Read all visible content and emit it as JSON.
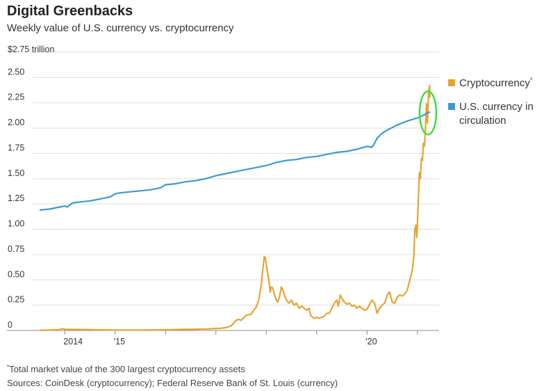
{
  "header": {
    "title": "Digital Greenbacks",
    "subtitle": "Weekly value of U.S. currency vs. cryptocurrency"
  },
  "footer": {
    "note_marker": "*",
    "note": "Total market value of the 300 largest cryptocurrency assets",
    "sources": "Sources: CoinDesk (cryptocurrency); Federal Reserve Bank of St. Louis (currency)"
  },
  "colors": {
    "crypto": "#E8A232",
    "currency": "#3A9AD1",
    "highlight": "#3CE03C",
    "grid": "#dddddd",
    "axis": "#888888"
  },
  "chart_data": {
    "type": "line",
    "title": "Digital Greenbacks",
    "subtitle": "Weekly value of U.S. currency vs. cryptocurrency",
    "ylim": [
      0,
      2.75
    ],
    "xlim": [
      2013.35,
      2021.35
    ],
    "y_unit_label": "$2.75 trillion",
    "y_ticks": [
      {
        "value": 0,
        "label": "0"
      },
      {
        "value": 0.25,
        "label": "0.25"
      },
      {
        "value": 0.5,
        "label": "0.50"
      },
      {
        "value": 0.75,
        "label": "0.75"
      },
      {
        "value": 1.0,
        "label": "1.00"
      },
      {
        "value": 1.25,
        "label": "1.25"
      },
      {
        "value": 1.5,
        "label": "1.50"
      },
      {
        "value": 1.75,
        "label": "1.75"
      },
      {
        "value": 2.0,
        "label": "2.00"
      },
      {
        "value": 2.25,
        "label": "2.25"
      },
      {
        "value": 2.5,
        "label": "2.50"
      },
      {
        "value": 2.75,
        "label": ""
      }
    ],
    "x_ticks": [
      {
        "value": 2014,
        "label": "2014"
      },
      {
        "value": 2015,
        "label": "'15"
      },
      {
        "value": 2016,
        "label": ""
      },
      {
        "value": 2017,
        "label": ""
      },
      {
        "value": 2018,
        "label": ""
      },
      {
        "value": 2019,
        "label": ""
      },
      {
        "value": 2020,
        "label": "'20"
      },
      {
        "value": 2021,
        "label": ""
      }
    ],
    "grid": true,
    "legend_position": "right",
    "series": [
      {
        "name": "Cryptocurrency",
        "name_marker": "*",
        "color": "#E8A232",
        "points": [
          [
            2013.5,
            0.002
          ],
          [
            2013.7,
            0.004
          ],
          [
            2013.9,
            0.008
          ],
          [
            2013.95,
            0.018
          ],
          [
            2014.0,
            0.012
          ],
          [
            2014.2,
            0.01
          ],
          [
            2014.5,
            0.008
          ],
          [
            2014.8,
            0.006
          ],
          [
            2015.0,
            0.004
          ],
          [
            2015.5,
            0.004
          ],
          [
            2016.0,
            0.007
          ],
          [
            2016.3,
            0.01
          ],
          [
            2016.5,
            0.012
          ],
          [
            2016.8,
            0.015
          ],
          [
            2017.0,
            0.02
          ],
          [
            2017.1,
            0.022
          ],
          [
            2017.2,
            0.028
          ],
          [
            2017.3,
            0.045
          ],
          [
            2017.4,
            0.1
          ],
          [
            2017.45,
            0.11
          ],
          [
            2017.5,
            0.1
          ],
          [
            2017.6,
            0.15
          ],
          [
            2017.7,
            0.16
          ],
          [
            2017.75,
            0.2
          ],
          [
            2017.8,
            0.23
          ],
          [
            2017.85,
            0.3
          ],
          [
            2017.9,
            0.45
          ],
          [
            2017.93,
            0.6
          ],
          [
            2017.96,
            0.73
          ],
          [
            2017.98,
            0.72
          ],
          [
            2018.0,
            0.65
          ],
          [
            2018.05,
            0.5
          ],
          [
            2018.08,
            0.38
          ],
          [
            2018.1,
            0.43
          ],
          [
            2018.13,
            0.42
          ],
          [
            2018.16,
            0.36
          ],
          [
            2018.2,
            0.3
          ],
          [
            2018.23,
            0.28
          ],
          [
            2018.27,
            0.35
          ],
          [
            2018.3,
            0.43
          ],
          [
            2018.33,
            0.4
          ],
          [
            2018.36,
            0.35
          ],
          [
            2018.4,
            0.3
          ],
          [
            2018.45,
            0.27
          ],
          [
            2018.5,
            0.3
          ],
          [
            2018.55,
            0.25
          ],
          [
            2018.6,
            0.27
          ],
          [
            2018.65,
            0.22
          ],
          [
            2018.7,
            0.24
          ],
          [
            2018.75,
            0.22
          ],
          [
            2018.8,
            0.2
          ],
          [
            2018.85,
            0.22
          ],
          [
            2018.88,
            0.15
          ],
          [
            2018.92,
            0.13
          ],
          [
            2018.96,
            0.12
          ],
          [
            2019.0,
            0.13
          ],
          [
            2019.05,
            0.12
          ],
          [
            2019.1,
            0.13
          ],
          [
            2019.15,
            0.14
          ],
          [
            2019.2,
            0.17
          ],
          [
            2019.25,
            0.17
          ],
          [
            2019.3,
            0.22
          ],
          [
            2019.35,
            0.27
          ],
          [
            2019.4,
            0.3
          ],
          [
            2019.43,
            0.24
          ],
          [
            2019.47,
            0.35
          ],
          [
            2019.5,
            0.32
          ],
          [
            2019.55,
            0.28
          ],
          [
            2019.6,
            0.26
          ],
          [
            2019.65,
            0.27
          ],
          [
            2019.7,
            0.24
          ],
          [
            2019.75,
            0.25
          ],
          [
            2019.8,
            0.22
          ],
          [
            2019.85,
            0.24
          ],
          [
            2019.9,
            0.22
          ],
          [
            2019.95,
            0.2
          ],
          [
            2020.0,
            0.21
          ],
          [
            2020.05,
            0.26
          ],
          [
            2020.1,
            0.3
          ],
          [
            2020.15,
            0.27
          ],
          [
            2020.2,
            0.17
          ],
          [
            2020.25,
            0.22
          ],
          [
            2020.3,
            0.25
          ],
          [
            2020.35,
            0.27
          ],
          [
            2020.4,
            0.35
          ],
          [
            2020.45,
            0.38
          ],
          [
            2020.5,
            0.28
          ],
          [
            2020.55,
            0.27
          ],
          [
            2020.6,
            0.33
          ],
          [
            2020.65,
            0.35
          ],
          [
            2020.7,
            0.34
          ],
          [
            2020.75,
            0.36
          ],
          [
            2020.8,
            0.4
          ],
          [
            2020.85,
            0.5
          ],
          [
            2020.9,
            0.6
          ],
          [
            2020.93,
            0.75
          ],
          [
            2020.95,
            1.0
          ],
          [
            2020.97,
            1.04
          ],
          [
            2020.99,
            0.92
          ],
          [
            2021.02,
            1.3
          ],
          [
            2021.04,
            1.56
          ],
          [
            2021.06,
            1.5
          ],
          [
            2021.08,
            1.7
          ],
          [
            2021.1,
            1.68
          ],
          [
            2021.12,
            1.85
          ],
          [
            2021.14,
            1.82
          ],
          [
            2021.16,
            2.0
          ],
          [
            2021.18,
            2.24
          ],
          [
            2021.2,
            2.05
          ],
          [
            2021.22,
            2.35
          ],
          [
            2021.24,
            2.42
          ],
          [
            2021.25,
            2.3
          ]
        ]
      },
      {
        "name": "U.S. currency in circulation",
        "color": "#3A9AD1",
        "points": [
          [
            2013.5,
            1.19
          ],
          [
            2013.7,
            1.2
          ],
          [
            2013.9,
            1.22
          ],
          [
            2014.0,
            1.23
          ],
          [
            2014.05,
            1.22
          ],
          [
            2014.15,
            1.26
          ],
          [
            2014.3,
            1.27
          ],
          [
            2014.5,
            1.28
          ],
          [
            2014.7,
            1.3
          ],
          [
            2014.9,
            1.32
          ],
          [
            2015.0,
            1.35
          ],
          [
            2015.1,
            1.36
          ],
          [
            2015.3,
            1.37
          ],
          [
            2015.5,
            1.38
          ],
          [
            2015.7,
            1.39
          ],
          [
            2015.9,
            1.41
          ],
          [
            2016.0,
            1.44
          ],
          [
            2016.2,
            1.45
          ],
          [
            2016.4,
            1.47
          ],
          [
            2016.6,
            1.48
          ],
          [
            2016.8,
            1.5
          ],
          [
            2017.0,
            1.53
          ],
          [
            2017.2,
            1.55
          ],
          [
            2017.4,
            1.57
          ],
          [
            2017.6,
            1.59
          ],
          [
            2017.8,
            1.61
          ],
          [
            2018.0,
            1.63
          ],
          [
            2018.2,
            1.66
          ],
          [
            2018.4,
            1.68
          ],
          [
            2018.6,
            1.69
          ],
          [
            2018.8,
            1.71
          ],
          [
            2019.0,
            1.72
          ],
          [
            2019.2,
            1.74
          ],
          [
            2019.4,
            1.76
          ],
          [
            2019.6,
            1.77
          ],
          [
            2019.8,
            1.79
          ],
          [
            2020.0,
            1.82
          ],
          [
            2020.1,
            1.81
          ],
          [
            2020.15,
            1.85
          ],
          [
            2020.2,
            1.9
          ],
          [
            2020.3,
            1.95
          ],
          [
            2020.4,
            1.98
          ],
          [
            2020.6,
            2.03
          ],
          [
            2020.8,
            2.07
          ],
          [
            2021.0,
            2.1
          ],
          [
            2021.1,
            2.12
          ],
          [
            2021.2,
            2.15
          ],
          [
            2021.25,
            2.16
          ]
        ]
      }
    ],
    "legend": [
      {
        "lines": [
          "Cryptocurrency"
        ],
        "marker": "*",
        "color": "#E8A232"
      },
      {
        "lines": [
          "U.S. currency in",
          "circulation"
        ],
        "color": "#3A9AD1"
      }
    ]
  }
}
